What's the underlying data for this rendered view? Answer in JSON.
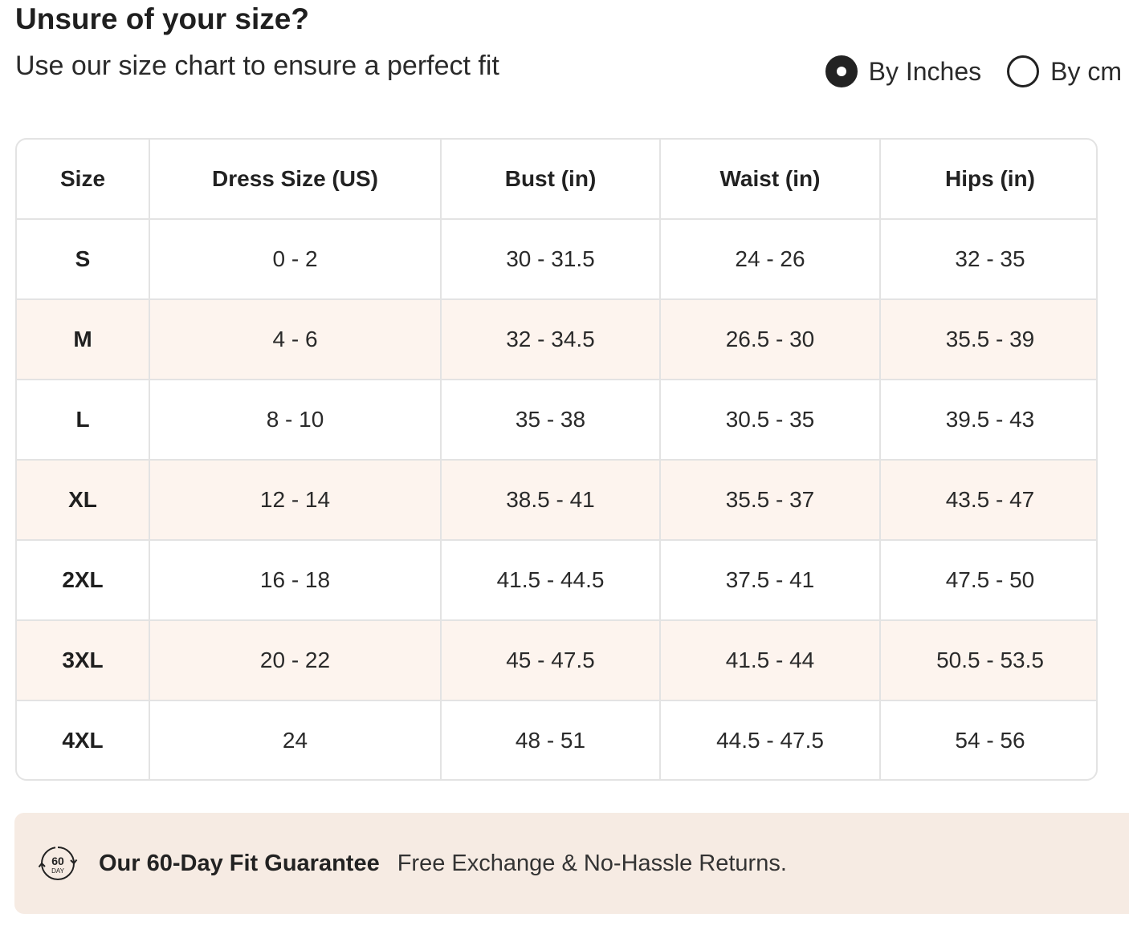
{
  "header": {
    "title": "Unsure of your size?",
    "subtitle": "Use our size chart to ensure a perfect fit"
  },
  "unit_toggle": {
    "options": [
      {
        "label": "By Inches",
        "selected": true
      },
      {
        "label": "By cm",
        "selected": false
      }
    ]
  },
  "size_table": {
    "columns": [
      "Size",
      "Dress Size (US)",
      "Bust (in)",
      "Waist (in)",
      "Hips (in)"
    ],
    "rows": [
      [
        "S",
        "0 - 2",
        "30 - 31.5",
        "24 - 26",
        "32 - 35"
      ],
      [
        "M",
        "4 - 6",
        "32 - 34.5",
        "26.5 - 30",
        "35.5 - 39"
      ],
      [
        "L",
        "8 - 10",
        "35 - 38",
        "30.5 - 35",
        "39.5 - 43"
      ],
      [
        "XL",
        "12 - 14",
        "38.5 - 41",
        "35.5 - 37",
        "43.5 - 47"
      ],
      [
        "2XL",
        "16 - 18",
        "41.5 - 44.5",
        "37.5 - 41",
        "47.5 - 50"
      ],
      [
        "3XL",
        "20 - 22",
        "45 - 47.5",
        "41.5 - 44",
        "50.5 - 53.5"
      ],
      [
        "4XL",
        "24",
        "48 - 51",
        "44.5 - 47.5",
        "54 - 56"
      ]
    ]
  },
  "guarantee": {
    "icon": "60-day-badge-icon",
    "badge_number": "60",
    "badge_unit": "DAY",
    "title": "Our 60-Day Fit Guarantee",
    "text": "Free Exchange & No-Hassle Returns."
  },
  "colors": {
    "text": "#222222",
    "stripe_row": "#fdf4ee",
    "banner_bg": "#f6ebe3",
    "border": "#e3e3e3"
  }
}
